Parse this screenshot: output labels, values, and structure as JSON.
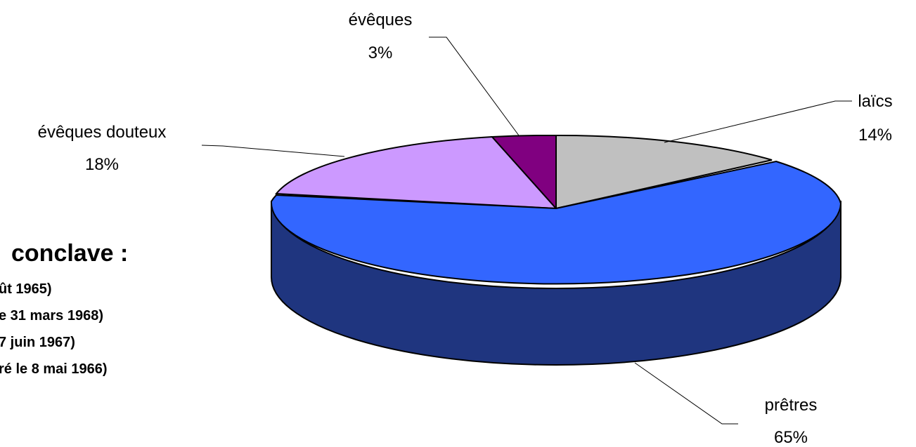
{
  "chart_data": {
    "type": "pie",
    "style": "3d-exploded-perspective",
    "slices": [
      {
        "label": "laïcs",
        "pct": "14%",
        "value": 14,
        "color": "#c0c0c0",
        "side_color": "#808080"
      },
      {
        "label": "prêtres",
        "pct": "65%",
        "value": 65,
        "color": "#3366ff",
        "side_color": "#1f357f"
      },
      {
        "label": "évêques douteux",
        "pct": "18%",
        "value": 18,
        "color": "#cc99ff",
        "side_color": "#7a5c99"
      },
      {
        "label": "évêques",
        "pct": "3%",
        "value": 3,
        "color": "#800080",
        "side_color": "#4d004d"
      }
    ]
  },
  "side_text": {
    "heading": "conclave :",
    "lines": [
      "ût 1965)",
      "e 31 mars 1968)",
      "7 juin 1967)",
      "ré le 8 mai 1966)"
    ]
  }
}
